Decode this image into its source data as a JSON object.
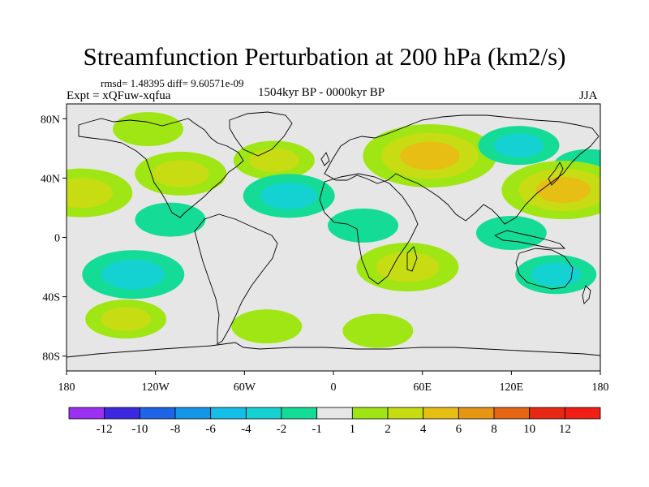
{
  "chart_data": {
    "type": "heatmap",
    "title": "Streamfunction Perturbation at 200 hPa (km2/s)",
    "annotations": {
      "stats": "rmsd= 1.48395 diff= 9.60571e-09",
      "experiment": "Expt = xQFuw-xqfua",
      "period": "1504kyr BP - 0000kyr BP",
      "season": "JJA"
    },
    "map": {
      "projection": "cylindrical equidistant",
      "lon_range": [
        -180,
        180
      ],
      "lat_range": [
        -90,
        90
      ]
    },
    "x_ticks": [
      {
        "value": -180,
        "label": "180"
      },
      {
        "value": -120,
        "label": "120W"
      },
      {
        "value": -60,
        "label": "60W"
      },
      {
        "value": 0,
        "label": "0"
      },
      {
        "value": 60,
        "label": "60E"
      },
      {
        "value": 120,
        "label": "120E"
      },
      {
        "value": 180,
        "label": "180"
      }
    ],
    "y_ticks": [
      {
        "value": 80,
        "label": "80N"
      },
      {
        "value": 40,
        "label": "40N"
      },
      {
        "value": 0,
        "label": "0"
      },
      {
        "value": -40,
        "label": "40S"
      },
      {
        "value": -80,
        "label": "80S"
      }
    ],
    "colorbar": {
      "levels": [
        -12,
        -10,
        -8,
        -6,
        -4,
        -2,
        -1,
        1,
        2,
        4,
        6,
        8,
        10,
        12
      ],
      "level_labels": [
        "-12",
        "-10",
        "-8",
        "-6",
        "-4",
        "-2",
        "-1",
        "1",
        "2",
        "4",
        "6",
        "8",
        "10",
        "12"
      ],
      "colors": [
        "#9b30f0",
        "#3c28e0",
        "#1e64e6",
        "#1496e6",
        "#14bee6",
        "#14d2d2",
        "#14dc96",
        "#e6e6e6",
        "#a0e614",
        "#c8dc14",
        "#e6be14",
        "#e69614",
        "#e66414",
        "#e62814",
        "#f01e14"
      ]
    },
    "features": [
      {
        "sign": "positive",
        "lon": -125,
        "lat": 73,
        "peak": 1.5
      },
      {
        "sign": "positive",
        "lon": -40,
        "lat": 52,
        "peak": 2
      },
      {
        "sign": "positive",
        "lon": -103,
        "lat": 43,
        "peak": 2.5
      },
      {
        "sign": "positive",
        "lon": -170,
        "lat": 30,
        "peak": 3
      },
      {
        "sign": "negative",
        "lon": -110,
        "lat": 12,
        "peak": -1.5
      },
      {
        "sign": "negative",
        "lon": -30,
        "lat": 28,
        "peak": -2.5
      },
      {
        "sign": "negative",
        "lon": 20,
        "lat": 8,
        "peak": -1.5
      },
      {
        "sign": "positive",
        "lon": 65,
        "lat": 55,
        "peak": 4.5
      },
      {
        "sign": "negative",
        "lon": 125,
        "lat": 62,
        "peak": -2
      },
      {
        "sign": "negative",
        "lon": 172,
        "lat": 48,
        "peak": -1.5
      },
      {
        "sign": "positive",
        "lon": 155,
        "lat": 32,
        "peak": 4
      },
      {
        "sign": "negative",
        "lon": 120,
        "lat": 3,
        "peak": -1.5
      },
      {
        "sign": "negative",
        "lon": -135,
        "lat": -25,
        "peak": -3
      },
      {
        "sign": "positive",
        "lon": 50,
        "lat": -20,
        "peak": 3
      },
      {
        "sign": "positive",
        "lon": -140,
        "lat": -55,
        "peak": 2
      },
      {
        "sign": "positive",
        "lon": -45,
        "lat": -60,
        "peak": 1.5
      },
      {
        "sign": "positive",
        "lon": 30,
        "lat": -63,
        "peak": 1.5
      },
      {
        "sign": "negative",
        "lon": 150,
        "lat": -25,
        "peak": -2
      }
    ]
  }
}
